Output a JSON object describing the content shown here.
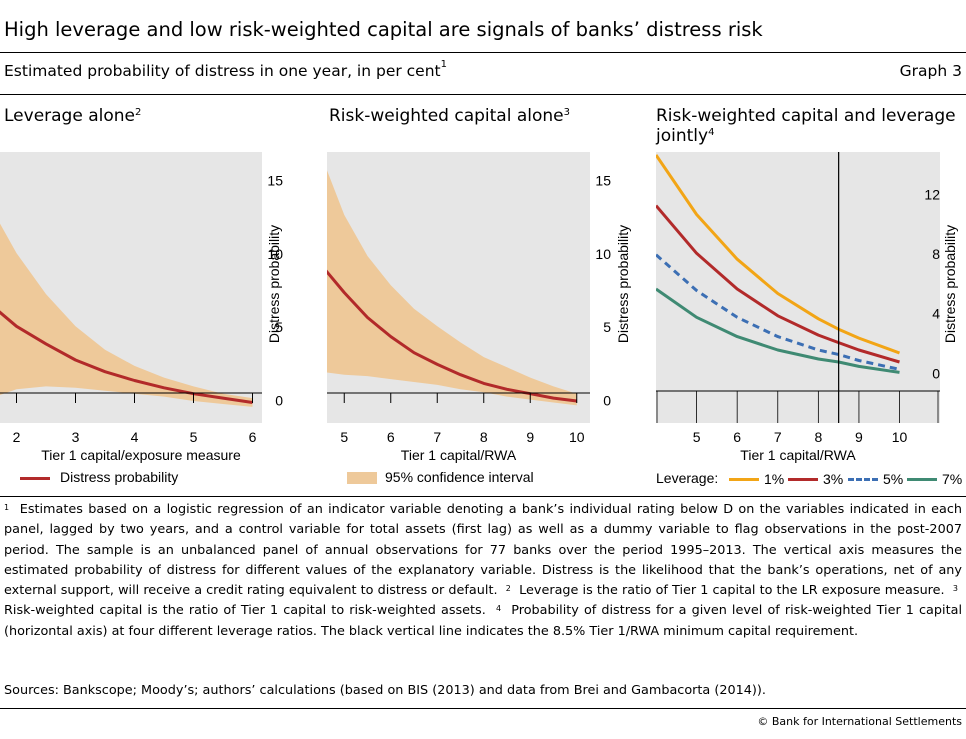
{
  "header": {
    "title": "High leverage and low risk-weighted capital are signals of banks’ distress risk",
    "subtitle": "Estimated probability of distress in one year, in per cent",
    "subtitle_note": "1",
    "graph_number": "Graph 3"
  },
  "panels": [
    {
      "title": "Leverage alone",
      "note": "2"
    },
    {
      "title": "Risk-weighted capital alone",
      "note": "3"
    },
    {
      "title_line1": "Risk-weighted capital and leverage",
      "title_line2": "jointly",
      "note": "4"
    }
  ],
  "legends": {
    "distress": "Distress probability",
    "ci": "95% confidence interval",
    "leverage_label": "Leverage:",
    "lev_1": "1%",
    "lev_3": "3%",
    "lev_5": "5%",
    "lev_7": "7%"
  },
  "colors": {
    "plot_bg": "#e6e6e6",
    "band": "#eec99a",
    "line": "#b22a2a",
    "lev1": "#f2a516",
    "lev3": "#b22a2a",
    "lev5": "#3c6fb4",
    "lev7": "#3f8a73"
  },
  "chart_data": [
    {
      "type": "area",
      "xlabel": "Tier 1 capital/exposure measure",
      "ylabel": "Distress probability",
      "xlim": [
        1.5,
        6.5
      ],
      "ylim": [
        -1,
        17.5
      ],
      "xticks": [
        2,
        3,
        4,
        5,
        6
      ],
      "yticks": [
        0,
        5,
        10,
        15
      ],
      "series": [
        {
          "name": "Distress probability",
          "type": "line",
          "x": [
            1.5,
            2,
            2.5,
            3,
            3.5,
            4,
            4.5,
            5,
            5.5,
            6
          ],
          "y": [
            7.3,
            5.6,
            4.4,
            3.3,
            2.5,
            1.9,
            1.4,
            1.0,
            0.7,
            0.4
          ]
        },
        {
          "name": "95% confidence interval",
          "type": "band",
          "x": [
            1.5,
            2,
            2.5,
            3,
            3.5,
            4,
            4.5,
            5,
            5.5,
            6
          ],
          "lower": [
            0.6,
            1.3,
            1.5,
            1.4,
            1.2,
            1.0,
            0.8,
            0.5,
            0.3,
            0.1
          ],
          "upper": [
            14.2,
            10.6,
            7.8,
            5.6,
            4.0,
            2.9,
            2.1,
            1.5,
            1.0,
            0.7
          ]
        }
      ]
    },
    {
      "type": "area",
      "xlabel": "Tier 1 capital/RWA",
      "ylabel": "Distress probability",
      "xlim": [
        4.5,
        10.5
      ],
      "ylim": [
        -1,
        17.5
      ],
      "xticks": [
        5,
        6,
        7,
        8,
        9,
        10
      ],
      "yticks": [
        0,
        5,
        10,
        15
      ],
      "series": [
        {
          "name": "Distress probability",
          "type": "line",
          "x": [
            4.5,
            5,
            5.5,
            6,
            6.5,
            7,
            7.5,
            8,
            8.5,
            9,
            9.5,
            10
          ],
          "y": [
            9.8,
            7.9,
            6.2,
            4.9,
            3.8,
            3.0,
            2.3,
            1.7,
            1.3,
            1.0,
            0.7,
            0.5
          ]
        },
        {
          "name": "95% confidence interval",
          "type": "band",
          "x": [
            4.5,
            5,
            5.5,
            6,
            6.5,
            7,
            7.5,
            8,
            8.5,
            9,
            9.5,
            10
          ],
          "lower": [
            2.5,
            2.3,
            2.2,
            2.0,
            1.8,
            1.6,
            1.3,
            1.1,
            0.8,
            0.6,
            0.4,
            0.2
          ],
          "upper": [
            17.3,
            13.2,
            10.4,
            8.4,
            6.8,
            5.6,
            4.5,
            3.5,
            2.8,
            2.1,
            1.5,
            1.0
          ]
        }
      ]
    },
    {
      "type": "line",
      "xlabel": "Tier 1 capital/RWA",
      "ylabel": "Distress probability",
      "xlim": [
        4,
        10.8
      ],
      "ylim": [
        -2.8,
        15.4
      ],
      "xticks": [
        5,
        6,
        7,
        8,
        9,
        10
      ],
      "yticks": [
        0,
        4,
        8,
        12
      ],
      "vline": 8.5,
      "series": [
        {
          "name": "1%",
          "x": [
            4,
            5,
            6,
            7,
            8,
            8.5,
            9,
            10
          ],
          "y": [
            15.2,
            11.2,
            8.2,
            5.9,
            4.2,
            3.5,
            2.9,
            1.9
          ]
        },
        {
          "name": "3%",
          "x": [
            4,
            5,
            6,
            7,
            8,
            8.5,
            9,
            10
          ],
          "y": [
            11.8,
            8.6,
            6.2,
            4.4,
            3.1,
            2.6,
            2.1,
            1.3
          ]
        },
        {
          "name": "5%",
          "x": [
            4,
            5,
            6,
            7,
            8,
            8.5,
            9,
            10
          ],
          "y": [
            8.5,
            6.1,
            4.3,
            3.0,
            2.1,
            1.8,
            1.4,
            0.8
          ]
        },
        {
          "name": "7%",
          "x": [
            4,
            5,
            6,
            7,
            8,
            8.5,
            9,
            10
          ],
          "y": [
            6.2,
            4.3,
            3.0,
            2.1,
            1.5,
            1.3,
            1.0,
            0.6
          ]
        }
      ]
    }
  ],
  "footnotes": {
    "n1": "1",
    "t1": "Estimates based on a logistic regression of an indicator variable denoting a bank’s individual rating below D on the variables indicated in each panel, lagged by two years, and a control variable for total assets (first lag) as well as a dummy variable to flag observations in the post-2007 period. The sample is an unbalanced panel of annual observations for 77 banks over the period 1995–2013. The vertical axis measures the estimated probability of distress for different values of the explanatory variable. Distress is the likelihood that the bank’s operations, net of any external support, will receive a credit rating equivalent to distress or default.",
    "n2": "2",
    "t2": "Leverage is the ratio of Tier 1 capital to the LR exposure measure.",
    "n3": "3",
    "t3": "Risk-weighted capital is the ratio of Tier 1 capital to risk-weighted assets.",
    "n4": "4",
    "t4": "Probability of distress for a given level of risk-weighted Tier 1 capital (horizontal axis) at four different leverage ratios. The black vertical line indicates the 8.5% Tier 1/RWA minimum capital requirement."
  },
  "sources": "Sources: Bankscope; Moody’s; authors’ calculations (based on BIS (2013) and data from Brei and Gambacorta (2014)).",
  "copyright": "© Bank for International Settlements"
}
